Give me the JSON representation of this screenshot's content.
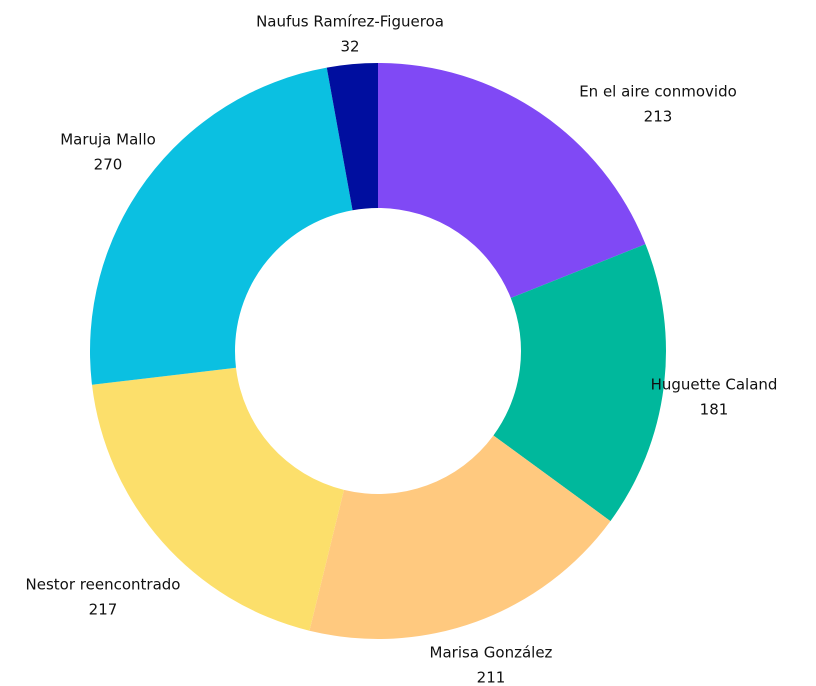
{
  "chart_data": {
    "type": "donut",
    "categories": [
      "En el aire conmovido",
      "Huguette Caland",
      "Marisa González",
      "Nestor reencontrado",
      "Maruja Mallo",
      "Naufus Ramírez-Figueroa"
    ],
    "values": [
      213,
      181,
      211,
      217,
      270,
      32
    ],
    "colors": [
      "#8049f5",
      "#00b89c",
      "#ffc97f",
      "#fcdf6b",
      "#0bc0e1",
      "#000e9f"
    ]
  }
}
